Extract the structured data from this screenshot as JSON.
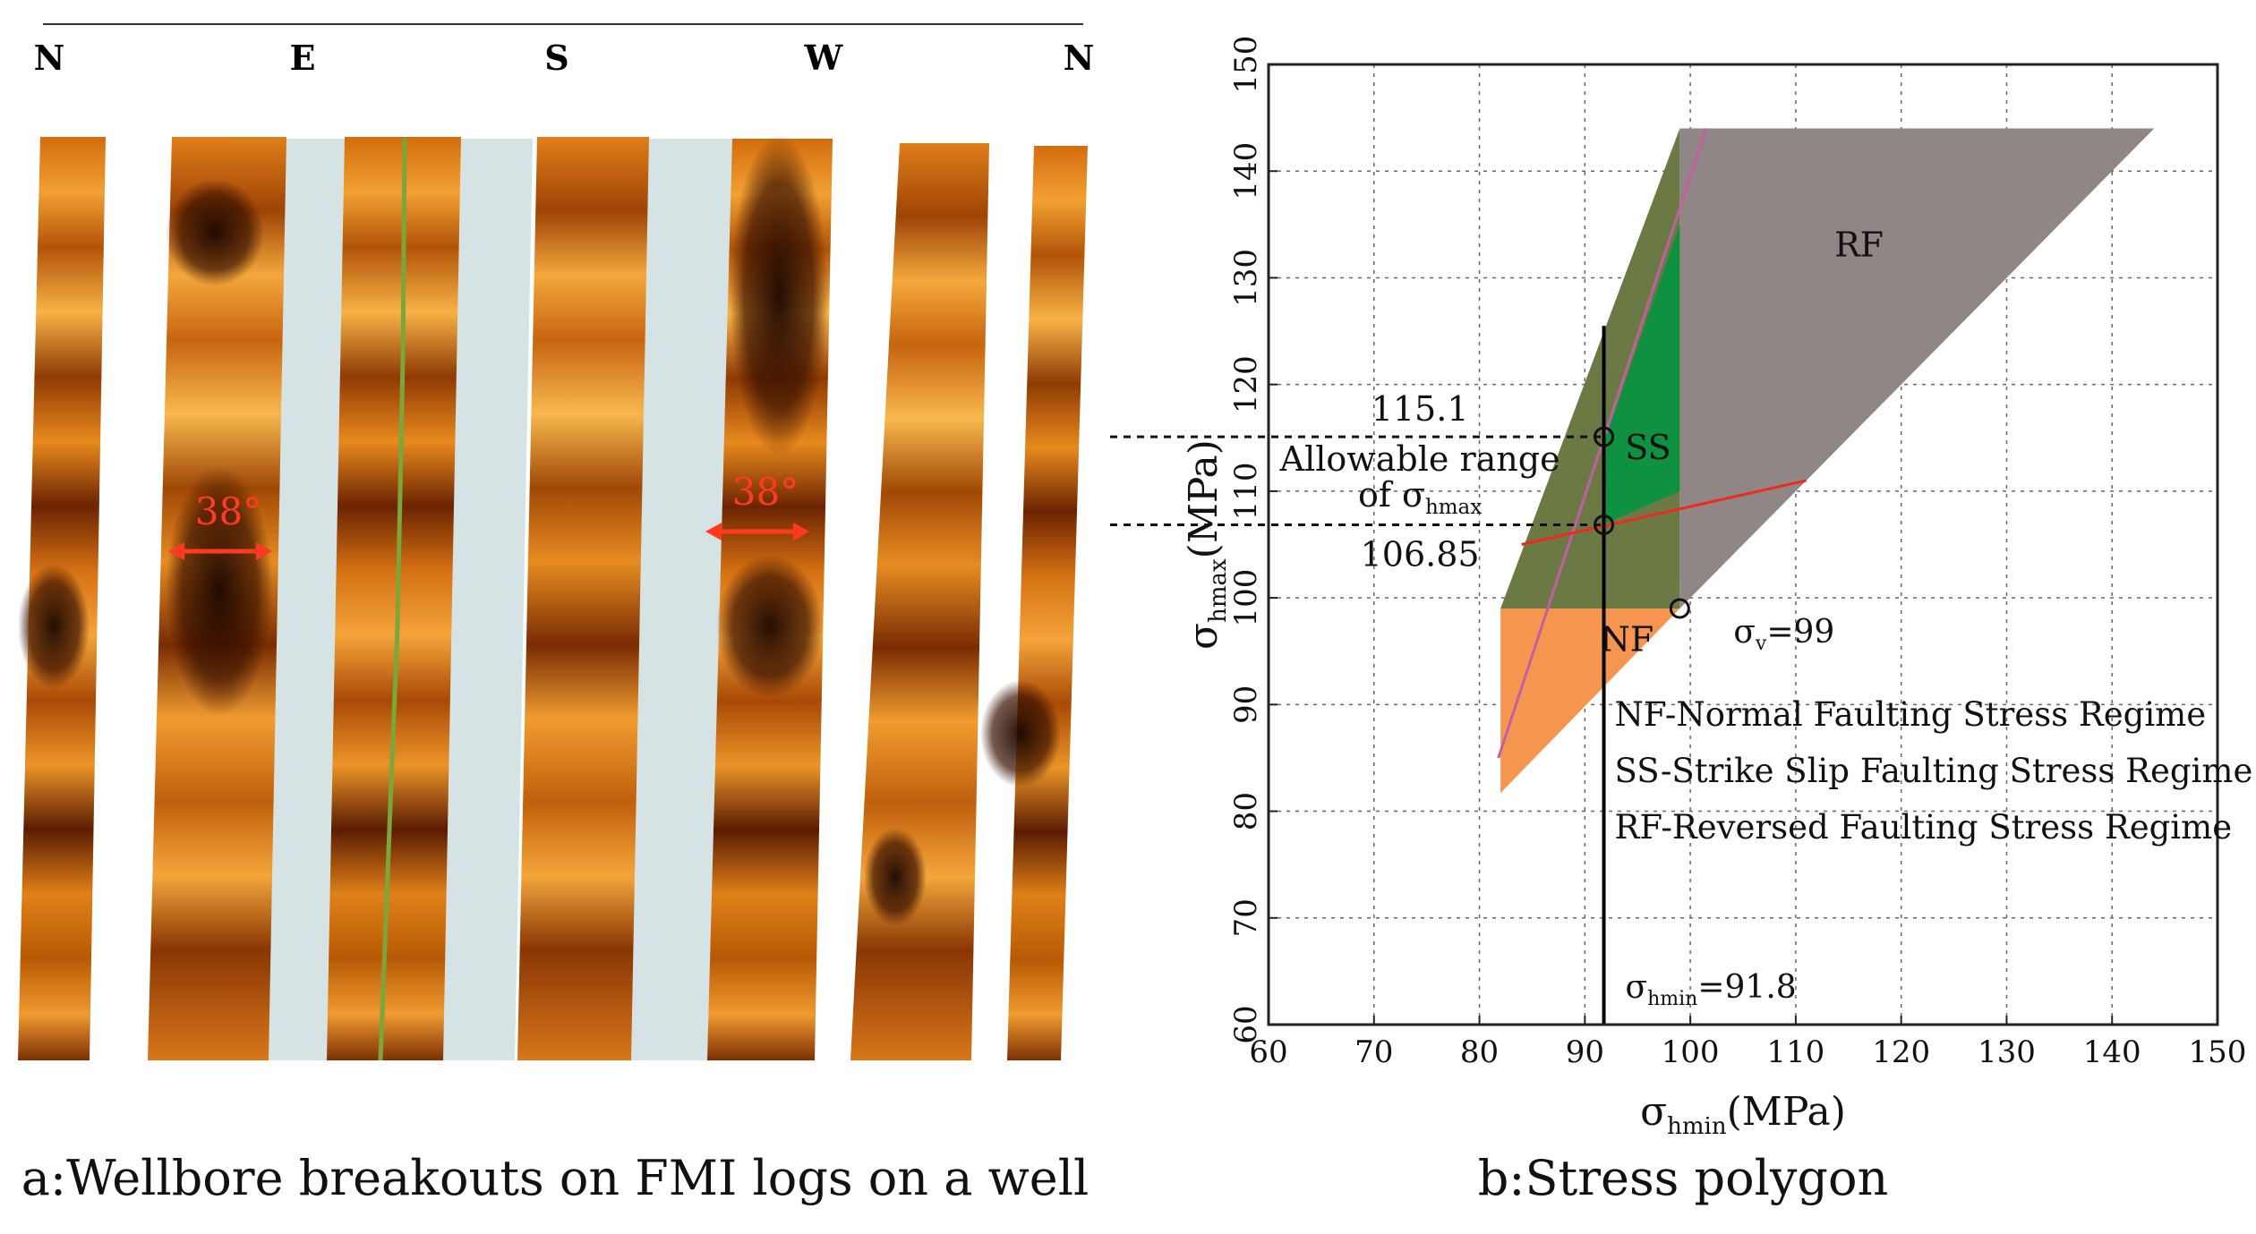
{
  "panel_a": {
    "directions": [
      "N",
      "E",
      "S",
      "W",
      "N"
    ],
    "breakouts": [
      {
        "label": "38°",
        "position": "west-of-E strip"
      },
      {
        "label": "38°",
        "position": "near W strip"
      }
    ],
    "caption": "a:Wellbore breakouts on FMI logs on a well",
    "colors": {
      "log_dark": "#2a0c00",
      "log_mid": "#b85a05",
      "log_light": "#f2a032",
      "gap": "#d6e3e5",
      "arrow": "#ff3a1f",
      "green_line": "#7aa63a"
    }
  },
  "panel_b": {
    "caption": "b:Stress polygon",
    "annotations": {
      "upper_value": "115.1",
      "lower_value": "106.85",
      "allowable_line1": "Allowable range",
      "allowable_line2_prefix": "of σ",
      "allowable_line2_sub": "hmax",
      "sv_label_prefix": "σ",
      "sv_label_sub": "v",
      "sv_label_suffix": "=99",
      "shmin_label_prefix": "σ",
      "shmin_label_sub": "hmin",
      "shmin_label_suffix": "=91.8"
    },
    "legend": [
      "NF-Normal Faulting Stress Regime",
      "SS-Strike Slip Faulting Stress Regime",
      "RF-Reversed Faulting Stress Regime"
    ]
  },
  "chart_data": {
    "type": "area",
    "title": "Stress polygon",
    "xlabel": "σhmin(MPa)",
    "ylabel": "σhmax(MPa)",
    "xlabel_main": "σ",
    "xlabel_sub": "hmin",
    "xlabel_unit": "(MPa)",
    "ylabel_main": "σ",
    "ylabel_sub": "hmax",
    "ylabel_unit": "(MPa)",
    "xlim": [
      60,
      150
    ],
    "ylim": [
      60,
      150
    ],
    "xticks": [
      60,
      70,
      80,
      90,
      100,
      110,
      120,
      130,
      140,
      150
    ],
    "yticks": [
      60,
      70,
      80,
      90,
      100,
      110,
      120,
      130,
      140,
      150
    ],
    "grid": true,
    "regions": [
      {
        "name": "NF",
        "label": "NF",
        "color": "#f5954f",
        "points": [
          [
            82,
            99
          ],
          [
            99,
            99
          ],
          [
            82,
            81.7
          ]
        ],
        "label_at": [
          94,
          95
        ]
      },
      {
        "name": "SS",
        "label": "SS",
        "color": "#6b7a45",
        "points": [
          [
            82,
            99
          ],
          [
            99,
            99
          ],
          [
            99,
            144
          ]
        ],
        "label_at": [
          96,
          113
        ]
      },
      {
        "name": "RF",
        "label": "RF",
        "color": "#908686",
        "points": [
          [
            99,
            99
          ],
          [
            99,
            144
          ],
          [
            144,
            144
          ]
        ],
        "label_at": [
          116,
          132
        ]
      },
      {
        "name": "allowable",
        "label": "",
        "color": "#0e9140",
        "points": [
          [
            92,
            107
          ],
          [
            99,
            110
          ],
          [
            99,
            135
          ],
          [
            92,
            115.1
          ]
        ],
        "label_at": null
      }
    ],
    "lines": [
      {
        "name": "friction-limit",
        "color": "#c060a0",
        "points": [
          [
            81.8,
            85
          ],
          [
            101.5,
            144
          ]
        ]
      },
      {
        "name": "breakout-limit",
        "color": "#ee2a1f",
        "points": [
          [
            84,
            105
          ],
          [
            111,
            111
          ]
        ]
      },
      {
        "name": "shmin-line",
        "color": "#000000",
        "points": [
          [
            91.8,
            60
          ],
          [
            91.8,
            125.5
          ]
        ]
      }
    ],
    "dashed_lines": [
      {
        "name": "upper-bound",
        "y": 115.1,
        "x_end": 91.8
      },
      {
        "name": "lower-bound",
        "y": 106.85,
        "x_end": 91.8
      }
    ],
    "points": [
      {
        "name": "upper",
        "x": 91.8,
        "y": 115.1
      },
      {
        "name": "lower",
        "x": 91.8,
        "y": 106.85
      },
      {
        "name": "sv",
        "x": 99,
        "y": 99
      }
    ]
  }
}
